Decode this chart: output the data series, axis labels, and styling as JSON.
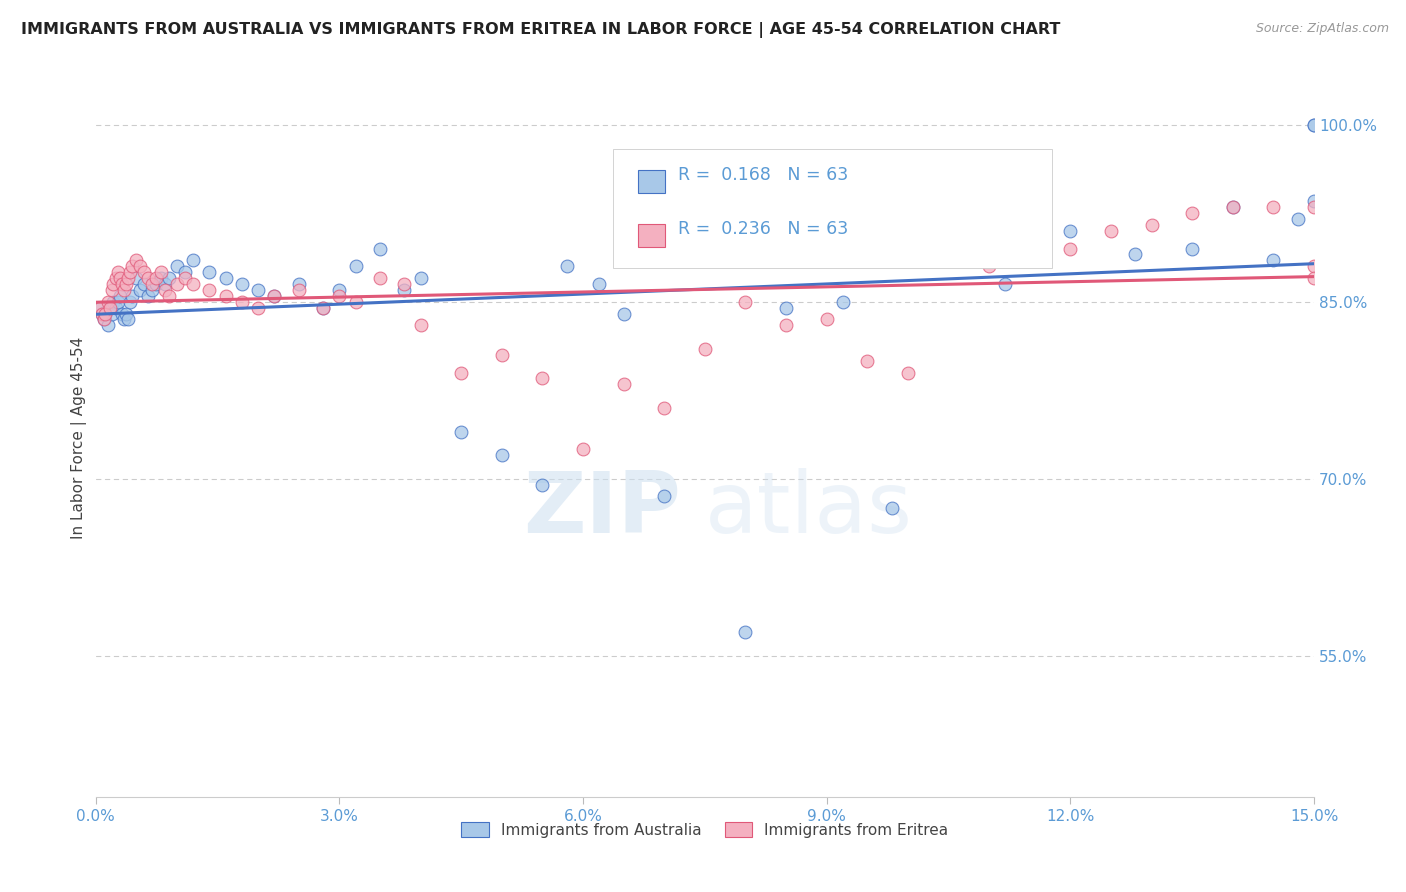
{
  "title": "IMMIGRANTS FROM AUSTRALIA VS IMMIGRANTS FROM ERITREA IN LABOR FORCE | AGE 45-54 CORRELATION CHART",
  "source": "Source: ZipAtlas.com",
  "xlabel_vals": [
    0.0,
    3.0,
    6.0,
    9.0,
    12.0,
    15.0
  ],
  "ylabel": "In Labor Force | Age 45-54",
  "ylabel_vals": [
    55.0,
    70.0,
    85.0,
    100.0
  ],
  "xlim": [
    0.0,
    15.0
  ],
  "ylim": [
    43.0,
    104.0
  ],
  "legend_r_australia": "R =  0.168",
  "legend_n_australia": "N = 63",
  "legend_r_eritrea": "R =  0.236",
  "legend_n_eritrea": "N = 63",
  "color_australia": "#a8c8e8",
  "color_eritrea": "#f4b0c0",
  "line_color_australia": "#4472c4",
  "line_color_eritrea": "#e05878",
  "australia_x": [
    0.05,
    0.08,
    0.1,
    0.12,
    0.15,
    0.18,
    0.2,
    0.22,
    0.25,
    0.28,
    0.3,
    0.32,
    0.35,
    0.38,
    0.4,
    0.42,
    0.45,
    0.5,
    0.55,
    0.6,
    0.65,
    0.7,
    0.75,
    0.8,
    0.85,
    0.9,
    1.0,
    1.1,
    1.2,
    1.4,
    1.6,
    1.8,
    2.0,
    2.2,
    2.5,
    2.8,
    3.0,
    3.2,
    3.5,
    3.8,
    4.0,
    4.5,
    5.0,
    5.5,
    5.8,
    6.2,
    6.5,
    7.0,
    8.0,
    8.5,
    9.2,
    9.8,
    10.5,
    11.2,
    12.0,
    12.8,
    13.5,
    14.0,
    14.5,
    14.8,
    15.0,
    15.0,
    15.0
  ],
  "australia_y": [
    84.5,
    84.0,
    83.5,
    84.0,
    83.0,
    84.5,
    84.0,
    85.0,
    84.5,
    85.0,
    85.5,
    84.0,
    83.5,
    84.0,
    83.5,
    85.0,
    85.5,
    87.0,
    86.0,
    86.5,
    85.5,
    86.0,
    86.5,
    87.0,
    86.5,
    87.0,
    88.0,
    87.5,
    88.5,
    87.5,
    87.0,
    86.5,
    86.0,
    85.5,
    86.5,
    84.5,
    86.0,
    88.0,
    89.5,
    86.0,
    87.0,
    74.0,
    72.0,
    69.5,
    88.0,
    86.5,
    84.0,
    68.5,
    57.0,
    84.5,
    85.0,
    67.5,
    90.5,
    86.5,
    91.0,
    89.0,
    89.5,
    93.0,
    88.5,
    92.0,
    100.0,
    93.5,
    100.0
  ],
  "eritrea_x": [
    0.05,
    0.08,
    0.1,
    0.12,
    0.15,
    0.18,
    0.2,
    0.22,
    0.25,
    0.28,
    0.3,
    0.32,
    0.35,
    0.38,
    0.4,
    0.42,
    0.45,
    0.5,
    0.55,
    0.6,
    0.65,
    0.7,
    0.75,
    0.8,
    0.85,
    0.9,
    1.0,
    1.1,
    1.2,
    1.4,
    1.6,
    1.8,
    2.0,
    2.2,
    2.5,
    2.8,
    3.0,
    3.2,
    3.5,
    3.8,
    4.0,
    4.5,
    5.0,
    5.5,
    6.0,
    6.5,
    7.0,
    7.5,
    8.0,
    8.5,
    9.0,
    9.5,
    10.0,
    11.0,
    12.0,
    12.5,
    13.0,
    13.5,
    14.0,
    14.5,
    15.0,
    15.0,
    15.0
  ],
  "eritrea_y": [
    84.5,
    84.0,
    83.5,
    84.0,
    85.0,
    84.5,
    86.0,
    86.5,
    87.0,
    87.5,
    87.0,
    86.5,
    86.0,
    86.5,
    87.0,
    87.5,
    88.0,
    88.5,
    88.0,
    87.5,
    87.0,
    86.5,
    87.0,
    87.5,
    86.0,
    85.5,
    86.5,
    87.0,
    86.5,
    86.0,
    85.5,
    85.0,
    84.5,
    85.5,
    86.0,
    84.5,
    85.5,
    85.0,
    87.0,
    86.5,
    83.0,
    79.0,
    80.5,
    78.5,
    72.5,
    78.0,
    76.0,
    81.0,
    85.0,
    83.0,
    83.5,
    80.0,
    79.0,
    88.0,
    89.5,
    91.0,
    91.5,
    92.5,
    93.0,
    93.0,
    93.0,
    88.0,
    87.0
  ],
  "watermark_zip": "ZIP",
  "watermark_atlas": "atlas",
  "background_color": "#ffffff",
  "grid_color": "#cccccc",
  "title_fontsize": 11.5,
  "axis_label_color": "#5b9bd5",
  "tick_color": "#5b9bd5"
}
